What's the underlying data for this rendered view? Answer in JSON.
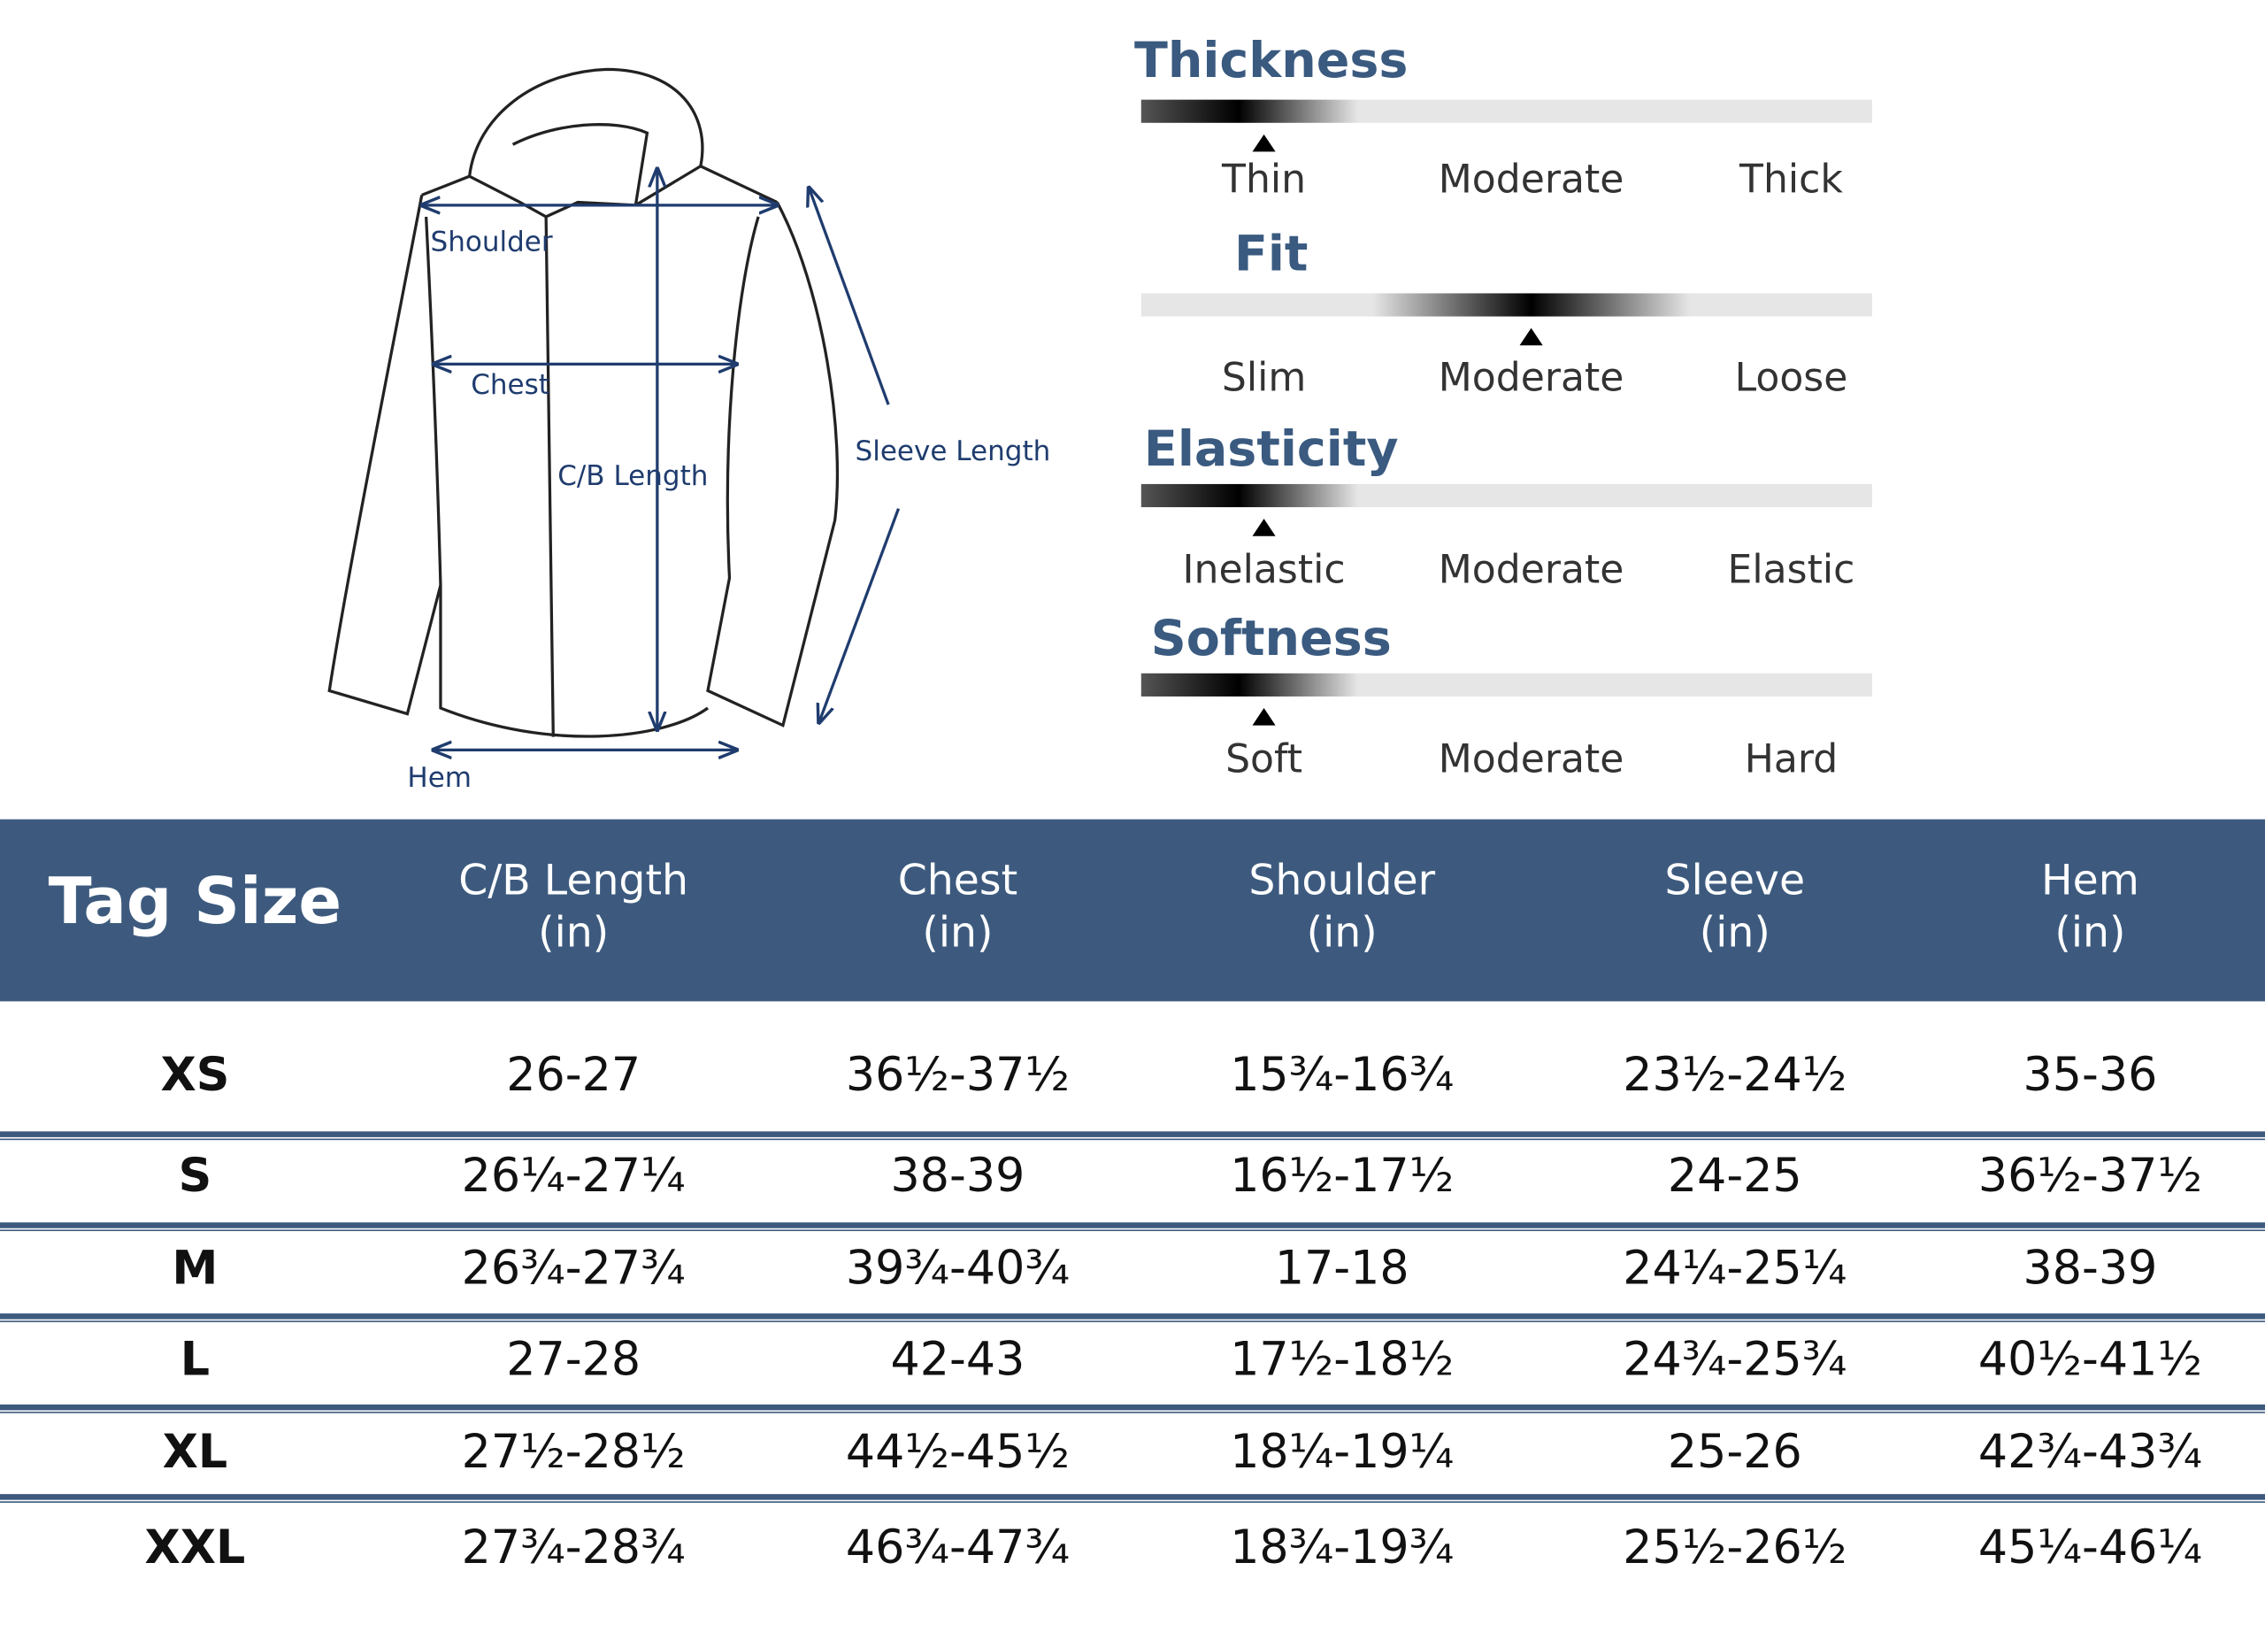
{
  "diagram": {
    "labels": [
      "Shoulder",
      "Chest",
      "C/B Length",
      "Sleeve Length",
      "Hem"
    ]
  },
  "scales": [
    {
      "title": "Thickness",
      "options": [
        "Thin",
        "Moderate",
        "Thick"
      ],
      "selected": 0
    },
    {
      "title": "Fit",
      "options": [
        "Slim",
        "Moderate",
        "Loose"
      ],
      "selected": 1
    },
    {
      "title": "Elasticity",
      "options": [
        "Inelastic",
        "Moderate",
        "Elastic"
      ],
      "selected": 0
    },
    {
      "title": "Softness",
      "options": [
        "Soft",
        "Moderate",
        "Hard"
      ],
      "selected": 0
    }
  ],
  "table": {
    "first": "Tag Size",
    "columns": [
      {
        "name": "C/B Length",
        "unit": "(in)"
      },
      {
        "name": "Chest",
        "unit": "(in)"
      },
      {
        "name": "Shoulder",
        "unit": "(in)"
      },
      {
        "name": "Sleeve",
        "unit": "(in)"
      },
      {
        "name": "Hem",
        "unit": "(in)"
      }
    ],
    "rows": [
      [
        "XS",
        "26-27",
        "36½-37½",
        "15¾-16¾",
        "23½-24½",
        "35-36"
      ],
      [
        "S",
        "26¼-27¼",
        "38-39",
        "16½-17½",
        "24-25",
        "36½-37½"
      ],
      [
        "M",
        "26¾-27¾",
        "39¾-40¾",
        "17-18",
        "24¼-25¼",
        "38-39"
      ],
      [
        "L",
        "27-28",
        "42-43",
        "17½-18½",
        "24¾-25¾",
        "40½-41½"
      ],
      [
        "XL",
        "27½-28½",
        "44½-45½",
        "18¼-19¼",
        "25-26",
        "42¾-43¾"
      ],
      [
        "XXL",
        "27¾-28¾",
        "46¾-47¾",
        "18¾-19¾",
        "25½-26½",
        "45¼-46¼"
      ]
    ]
  }
}
